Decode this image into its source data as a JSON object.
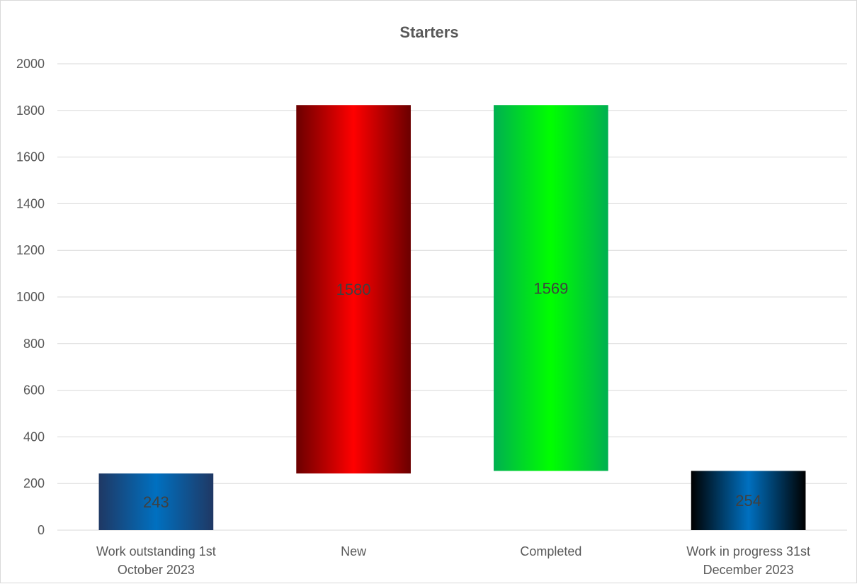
{
  "chart_data": {
    "type": "bar",
    "subtype": "waterfall",
    "title": "Starters",
    "xlabel": "",
    "ylabel": "",
    "ylim": [
      0,
      2000
    ],
    "y_ticks": [
      0,
      200,
      400,
      600,
      800,
      1000,
      1200,
      1400,
      1600,
      1800,
      2000
    ],
    "grid": true,
    "legend": "none",
    "categories": [
      [
        "Work outstanding 1st",
        "October 2023"
      ],
      [
        "New"
      ],
      [
        "Completed"
      ],
      [
        "Work in progress 31st",
        "December 2023"
      ]
    ],
    "bars": [
      {
        "category": "Work outstanding 1st October 2023",
        "label": "243",
        "value": 243,
        "base": 0,
        "top": 243,
        "kind": "total",
        "color_edge": "#1f3864",
        "color_mid": "#0070c0",
        "label_color": "#404040"
      },
      {
        "category": "New",
        "label": "1580",
        "value": 1580,
        "base": 243,
        "top": 1823,
        "kind": "increase",
        "color_edge": "#6b0000",
        "color_mid": "#ff0000",
        "label_color": "#404040"
      },
      {
        "category": "Completed",
        "label": "1569",
        "value": 1569,
        "base": 254,
        "top": 1823,
        "kind": "decrease",
        "color_edge": "#00b050",
        "color_mid": "#00ff00",
        "label_color": "#404040"
      },
      {
        "category": "Work in progress 31st December 2023",
        "label": "254",
        "value": 254,
        "base": 0,
        "top": 254,
        "kind": "total",
        "color_edge": "#000000",
        "color_mid": "#0070c0",
        "label_color": "#404040"
      }
    ]
  }
}
